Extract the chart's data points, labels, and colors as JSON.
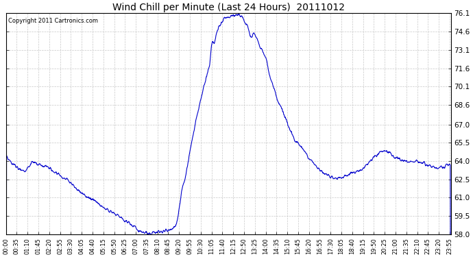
{
  "title": "Wind Chill per Minute (Last 24 Hours)  20111012",
  "copyright": "Copyright 2011 Cartronics.com",
  "line_color": "#0000cc",
  "background_color": "#ffffff",
  "grid_color": "#c8c8c8",
  "ylim": [
    58.0,
    76.1
  ],
  "yticks": [
    58.0,
    59.5,
    61.0,
    62.5,
    64.0,
    65.5,
    67.0,
    68.6,
    70.1,
    71.6,
    73.1,
    74.6,
    76.1
  ],
  "xtick_labels": [
    "00:00",
    "00:35",
    "01:10",
    "01:45",
    "02:20",
    "02:55",
    "03:30",
    "04:05",
    "04:40",
    "05:15",
    "05:50",
    "06:25",
    "07:00",
    "07:35",
    "08:10",
    "08:45",
    "09:20",
    "09:55",
    "10:30",
    "11:05",
    "11:40",
    "12:15",
    "12:50",
    "13:25",
    "14:00",
    "14:35",
    "15:10",
    "15:45",
    "16:20",
    "16:55",
    "17:30",
    "18:05",
    "18:40",
    "19:15",
    "19:50",
    "20:25",
    "21:00",
    "21:35",
    "22:10",
    "22:45",
    "23:20",
    "23:55"
  ],
  "figsize": [
    6.9,
    3.75
  ],
  "dpi": 100
}
